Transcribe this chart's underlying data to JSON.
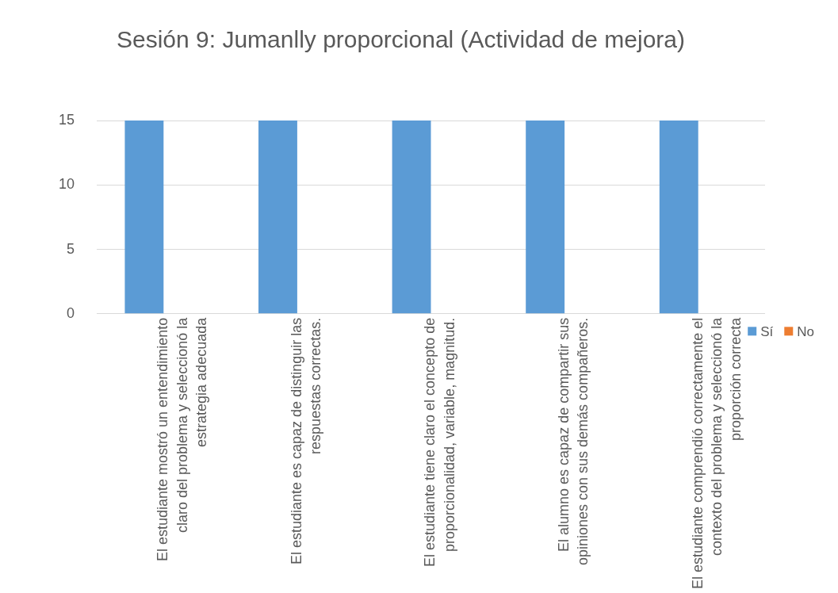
{
  "chart_data": {
    "type": "bar",
    "title": "Sesión 9: Jumanlly proporcional (Actividad de mejora)",
    "categories": [
      "El estudiante mostró un entendimiento claro del problema y seleccionó la estrategia adecuada",
      "El estudiante es capaz de distinguir las respuestas correctas.",
      "El estudiante tiene claro el concepto de proporcionalidad, variable, magnitud.",
      "El alumno es capaz de compartir sus opiniones con sus demás compañeros.",
      "El estudiante comprendió correctamente el contexto del problema y seleccionó la proporción correcta"
    ],
    "series": [
      {
        "name": "Sí",
        "color": "#5b9bd5",
        "values": [
          15,
          15,
          15,
          15,
          15
        ]
      },
      {
        "name": "No",
        "color": "#ed7d31",
        "values": [
          0,
          0,
          0,
          0,
          0
        ]
      }
    ],
    "ylim": [
      0,
      15
    ],
    "yticks": [
      0,
      5,
      10,
      15
    ],
    "grid": "y",
    "legend": "right"
  }
}
